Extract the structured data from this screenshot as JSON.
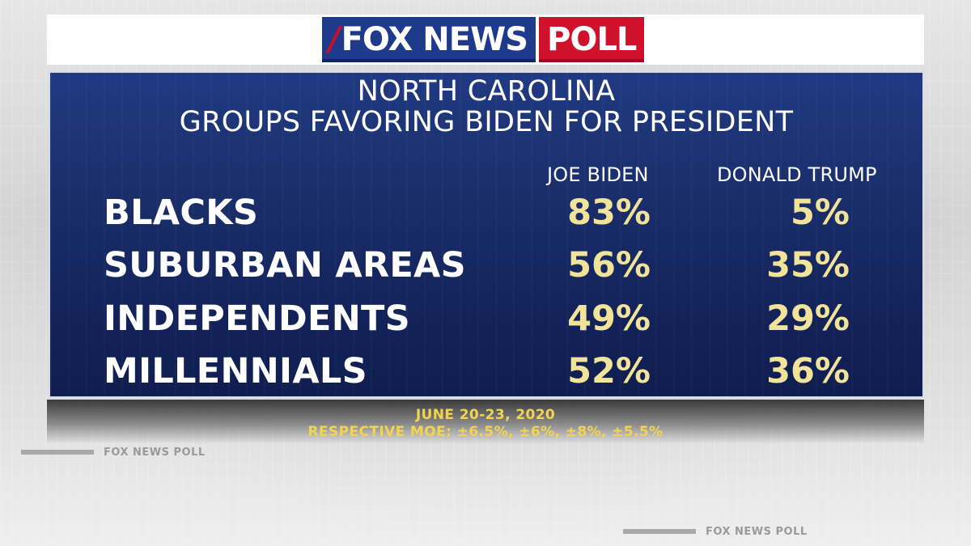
{
  "logo": {
    "fox_news": "FOX NEWS",
    "poll": "POLL"
  },
  "chart_data": {
    "type": "table",
    "title": "NORTH CAROLINA",
    "subtitle": "GROUPS FAVORING BIDEN FOR PRESIDENT",
    "columns": [
      "JOE BIDEN",
      "DONALD TRUMP"
    ],
    "rows": [
      {
        "label": "BLACKS",
        "values": [
          "83%",
          "5%"
        ]
      },
      {
        "label": "SUBURBAN AREAS",
        "values": [
          "56%",
          "35%"
        ]
      },
      {
        "label": "INDEPENDENTS",
        "values": [
          "49%",
          "29%"
        ]
      },
      {
        "label": "MILLENNIALS",
        "values": [
          "52%",
          "36%"
        ]
      }
    ],
    "series": [
      {
        "name": "JOE BIDEN",
        "values": [
          83,
          56,
          49,
          52
        ]
      },
      {
        "name": "DONALD TRUMP",
        "values": [
          5,
          35,
          29,
          36
        ]
      }
    ],
    "categories": [
      "BLACKS",
      "SUBURBAN AREAS",
      "INDEPENDENTS",
      "MILLENNIALS"
    ]
  },
  "footer": {
    "dates": "JUNE 20-23, 2020",
    "moe": "RESPECTIVE MOE: ±6.5%, ±6%, ±8%, ±5.5%"
  },
  "background": {
    "ghost_logo_1": "FOX NEWS POLL",
    "ghost_logo_2": "FOX NEWS POLL"
  },
  "colors": {
    "panel": "#1b2f6c",
    "value_text": "#f2e39a",
    "footer_text": "#f2d44f",
    "brand_blue": "#1e3a8a",
    "brand_red": "#d0112b"
  }
}
